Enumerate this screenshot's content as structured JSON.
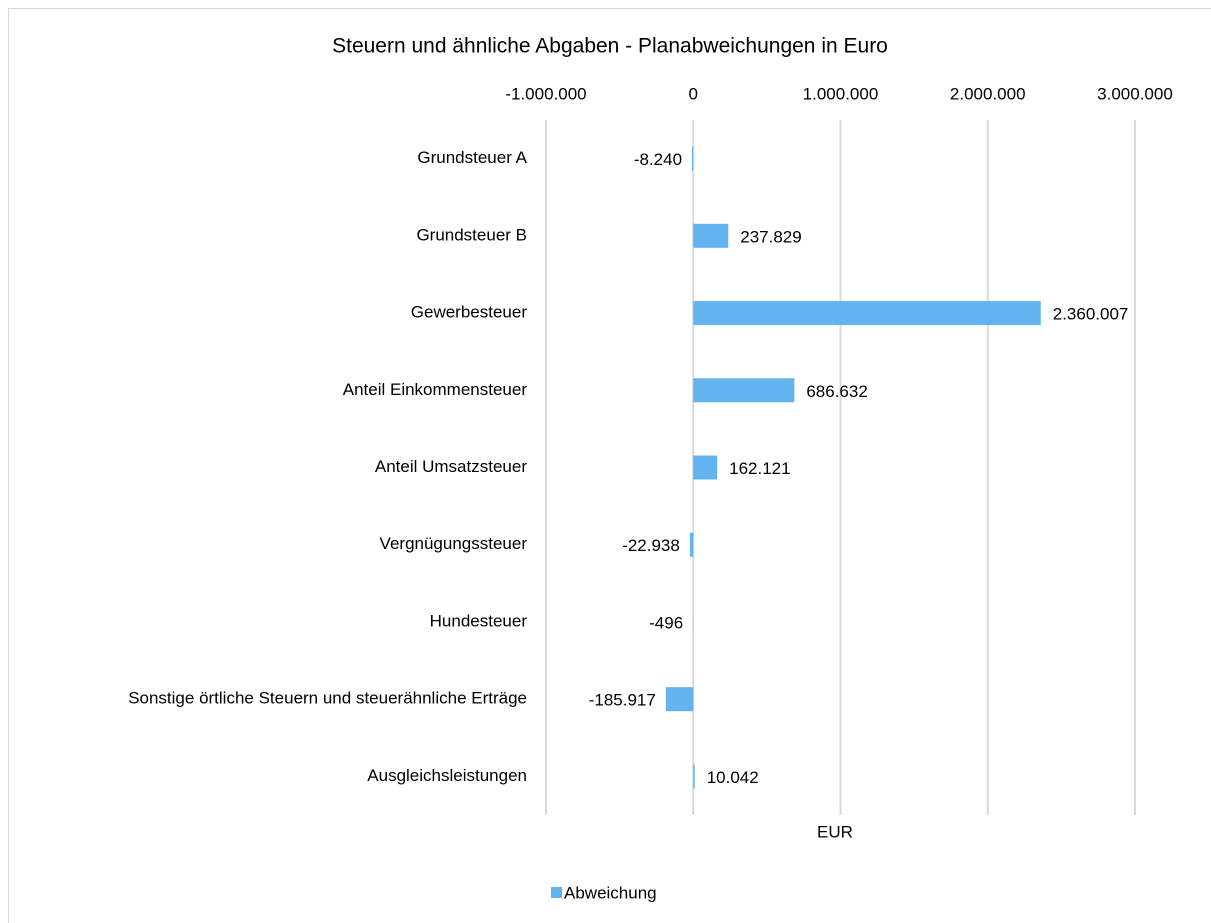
{
  "chart_data": {
    "type": "bar",
    "orientation": "horizontal",
    "title": "Steuern und ähnliche Abgaben - Planabweichungen in Euro",
    "x_label": "EUR",
    "categories": [
      "Grundsteuer A",
      "Grundsteuer B",
      "Gewerbesteuer",
      "Anteil Einkommensteuer",
      "Anteil Umsatzsteuer",
      "Vergnügungssteuer",
      "Hundesteuer",
      "Sonstige örtliche Steuern und steuerähnliche Erträge",
      "Ausgleichsleistungen"
    ],
    "series": [
      {
        "name": "Abweichung",
        "color": "#63b3f0",
        "values": [
          -8240,
          237829,
          2360007,
          686632,
          162121,
          -22938,
          -496,
          -185917,
          10042
        ],
        "value_labels": [
          "-8.240",
          "237.829",
          "2.360.007",
          "686.632",
          "162.121",
          "-22.938",
          "-496",
          "-185.917",
          "10.042"
        ]
      }
    ],
    "xlim": [
      -1000000,
      3000000
    ],
    "xticks": [
      {
        "value": -1000000,
        "label": "-1.000.000"
      },
      0,
      {
        "value": 1000000,
        "label": "1.000.000"
      },
      {
        "value": 2000000,
        "label": "2.000.000"
      },
      {
        "value": 3000000,
        "label": "3.000.000"
      }
    ],
    "grid": true,
    "legend": "bottom"
  }
}
